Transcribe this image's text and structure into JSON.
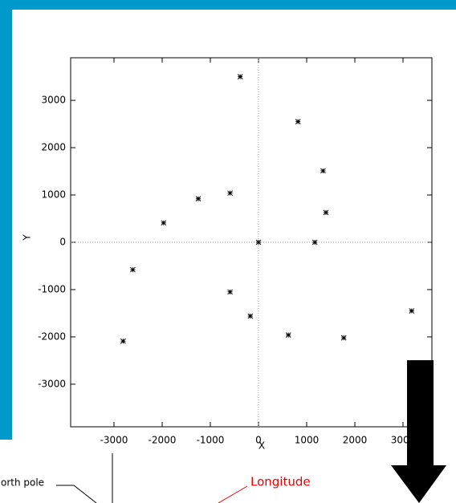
{
  "chart_data": {
    "type": "scatter",
    "xlabel": "X",
    "ylabel": "Y",
    "x": [
      -380,
      820,
      1340,
      -1250,
      -590,
      -1970,
      1400,
      0,
      1170,
      -2610,
      -590,
      -170,
      620,
      1770,
      3180,
      -2810
    ],
    "y": [
      3500,
      2550,
      1510,
      920,
      1040,
      410,
      630,
      0,
      0,
      -580,
      -1050,
      -1560,
      -1960,
      -2020,
      -1450,
      -2090
    ],
    "color": "#000000",
    "xlim": [
      -3900,
      3600
    ],
    "ylim": [
      -3900,
      3900
    ],
    "xticks": [
      -3000,
      -2000,
      -1000,
      0,
      1000,
      2000,
      3000
    ],
    "yticks": [
      -3000,
      -2000,
      -1000,
      0,
      1000,
      2000,
      3000
    ],
    "zero_lines": true
  },
  "annotations": {
    "left": "North pole",
    "right": "Longitude"
  }
}
